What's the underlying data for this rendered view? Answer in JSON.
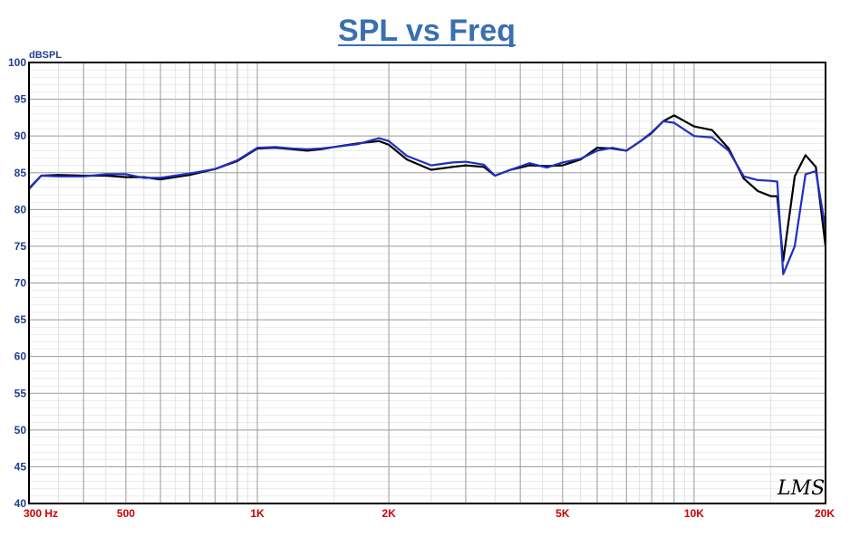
{
  "chart_data": {
    "type": "line",
    "title": "SPL vs Freq",
    "ylabel": "dBSPL",
    "xlabel": "",
    "xscale": "log",
    "xlim": [
      300,
      20000
    ],
    "ylim": [
      40,
      100
    ],
    "grid": true,
    "legend": "none",
    "y_ticks": [
      "40",
      "45",
      "50",
      "55",
      "60",
      "65",
      "70",
      "75",
      "80",
      "85",
      "90",
      "95",
      "100"
    ],
    "x_ticks": [
      {
        "value": 300,
        "label": "300  Hz"
      },
      {
        "value": 500,
        "label": "500"
      },
      {
        "value": 1000,
        "label": "1K"
      },
      {
        "value": 2000,
        "label": "2K"
      },
      {
        "value": 5000,
        "label": "5K"
      },
      {
        "value": 10000,
        "label": "10K"
      },
      {
        "value": 20000,
        "label": "20K"
      }
    ],
    "series": [
      {
        "color": "#000000",
        "points": [
          [
            300,
            82.8
          ],
          [
            320,
            84.6
          ],
          [
            350,
            84.7
          ],
          [
            400,
            84.6
          ],
          [
            450,
            84.6
          ],
          [
            500,
            84.4
          ],
          [
            550,
            84.4
          ],
          [
            600,
            84.1
          ],
          [
            700,
            84.7
          ],
          [
            800,
            85.5
          ],
          [
            900,
            86.6
          ],
          [
            1000,
            88.3
          ],
          [
            1100,
            88.4
          ],
          [
            1200,
            88.2
          ],
          [
            1300,
            88.0
          ],
          [
            1400,
            88.2
          ],
          [
            1500,
            88.5
          ],
          [
            1700,
            89.0
          ],
          [
            1900,
            89.3
          ],
          [
            2000,
            88.8
          ],
          [
            2200,
            86.8
          ],
          [
            2500,
            85.4
          ],
          [
            2800,
            85.8
          ],
          [
            3000,
            86.0
          ],
          [
            3300,
            85.8
          ],
          [
            3500,
            84.6
          ],
          [
            3800,
            85.4
          ],
          [
            4200,
            86.0
          ],
          [
            4600,
            85.9
          ],
          [
            5000,
            86.0
          ],
          [
            5500,
            86.8
          ],
          [
            6000,
            88.4
          ],
          [
            6500,
            88.3
          ],
          [
            7000,
            88.0
          ],
          [
            7500,
            89.2
          ],
          [
            8000,
            90.4
          ],
          [
            8500,
            92.0
          ],
          [
            9000,
            92.8
          ],
          [
            10000,
            91.3
          ],
          [
            11000,
            90.8
          ],
          [
            12000,
            88.3
          ],
          [
            13000,
            84.2
          ],
          [
            14000,
            82.5
          ],
          [
            15000,
            81.8
          ],
          [
            15500,
            81.8
          ],
          [
            16000,
            73.0
          ],
          [
            17000,
            84.5
          ],
          [
            18000,
            87.4
          ],
          [
            19000,
            85.8
          ],
          [
            20000,
            75.0
          ]
        ]
      },
      {
        "color": "#1f2fc0",
        "points": [
          [
            300,
            82.9
          ],
          [
            320,
            84.6
          ],
          [
            350,
            84.5
          ],
          [
            400,
            84.5
          ],
          [
            450,
            84.8
          ],
          [
            500,
            84.8
          ],
          [
            550,
            84.3
          ],
          [
            600,
            84.3
          ],
          [
            700,
            84.9
          ],
          [
            800,
            85.5
          ],
          [
            900,
            86.7
          ],
          [
            1000,
            88.4
          ],
          [
            1100,
            88.5
          ],
          [
            1200,
            88.3
          ],
          [
            1300,
            88.2
          ],
          [
            1400,
            88.3
          ],
          [
            1500,
            88.5
          ],
          [
            1700,
            88.9
          ],
          [
            1900,
            89.7
          ],
          [
            2000,
            89.3
          ],
          [
            2200,
            87.3
          ],
          [
            2500,
            86.0
          ],
          [
            2800,
            86.4
          ],
          [
            3000,
            86.5
          ],
          [
            3300,
            86.1
          ],
          [
            3500,
            84.6
          ],
          [
            3800,
            85.4
          ],
          [
            4200,
            86.3
          ],
          [
            4600,
            85.7
          ],
          [
            5000,
            86.4
          ],
          [
            5500,
            86.9
          ],
          [
            6000,
            88.0
          ],
          [
            6500,
            88.4
          ],
          [
            7000,
            88.0
          ],
          [
            7500,
            89.2
          ],
          [
            8000,
            90.5
          ],
          [
            8500,
            92.0
          ],
          [
            9000,
            91.8
          ],
          [
            10000,
            90.0
          ],
          [
            11000,
            89.8
          ],
          [
            12000,
            88.0
          ],
          [
            13000,
            84.5
          ],
          [
            14000,
            84.0
          ],
          [
            15000,
            83.9
          ],
          [
            15500,
            83.8
          ],
          [
            16000,
            71.2
          ],
          [
            17000,
            75.0
          ],
          [
            18000,
            84.8
          ],
          [
            19000,
            85.2
          ],
          [
            20000,
            77.4
          ]
        ]
      }
    ],
    "logo": "LMS"
  }
}
